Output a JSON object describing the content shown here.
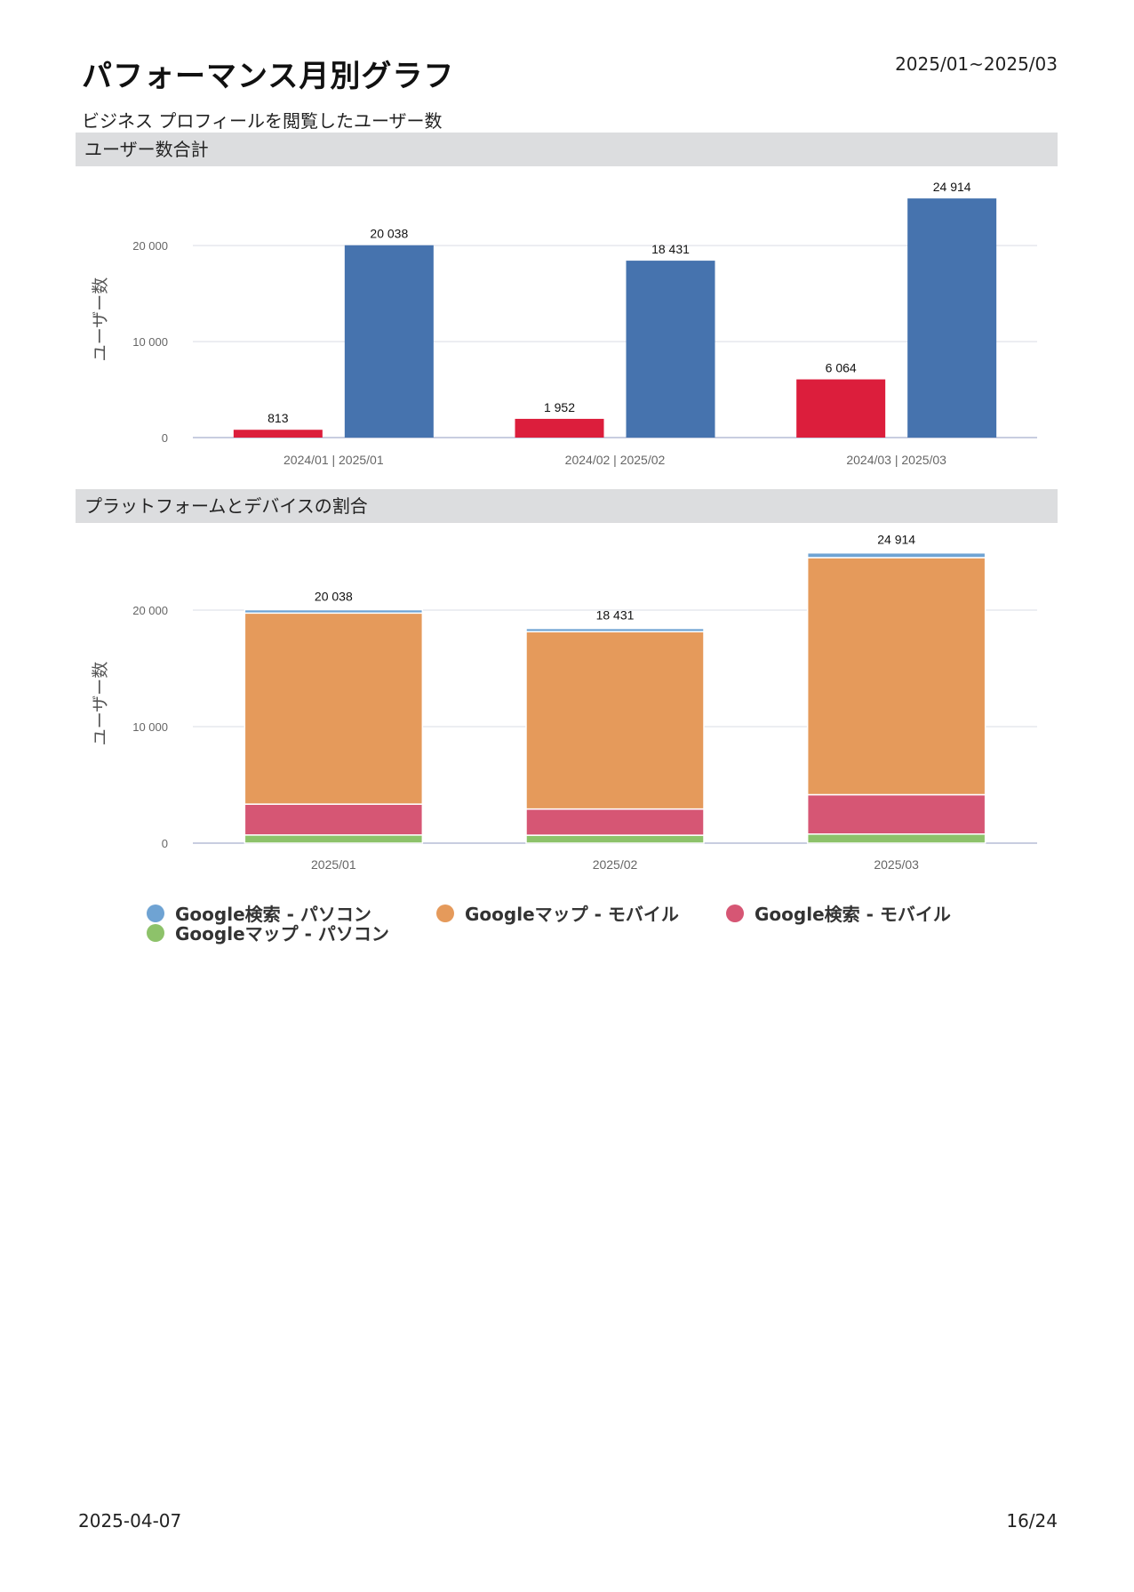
{
  "header": {
    "title": "パフォーマンス月別グラフ",
    "period": "2025/01~2025/03",
    "subtitle": "ビジネス プロフィールを閲覧したユーザー数"
  },
  "sections": {
    "total_title": "ユーザー数合計",
    "platform_title": "プラットフォームとデバイスの割合"
  },
  "chart_data": [
    {
      "type": "bar",
      "ylabel": "ユーザー数",
      "ylim": [
        0,
        26500
      ],
      "yticks": [
        0,
        10000,
        20000
      ],
      "ytick_labels": [
        "0",
        "10 000",
        "20 000"
      ],
      "categories": [
        "2024/01 | 2025/01",
        "2024/02 | 2025/02",
        "2024/03 | 2025/03"
      ],
      "series": [
        {
          "values": [
            813,
            1952,
            6064
          ],
          "value_labels": [
            "813",
            "1 952",
            "6 064"
          ],
          "color": "#dc1e3c"
        },
        {
          "values": [
            20038,
            18431,
            24914
          ],
          "value_labels": [
            "20 038",
            "18 431",
            "24 914"
          ],
          "color": "#4673ae"
        }
      ],
      "grid": true
    },
    {
      "type": "bar",
      "stacked": true,
      "ylabel": "ユーザー数",
      "ylim": [
        0,
        25500
      ],
      "yticks": [
        0,
        10000,
        20000
      ],
      "ytick_labels": [
        "0",
        "10 000",
        "20 000"
      ],
      "categories": [
        "2025/01",
        "2025/02",
        "2025/03"
      ],
      "totals": [
        20038,
        18431,
        24914
      ],
      "total_labels": [
        "20 038",
        "18 431",
        "24 914"
      ],
      "series": [
        {
          "name": "Googleマップ - パソコン",
          "values": [
            700,
            680,
            780
          ],
          "color": "#8dc26a"
        },
        {
          "name": "Google検索 - モバイル",
          "values": [
            2650,
            2250,
            3380
          ],
          "color": "#d65674"
        },
        {
          "name": "Googleマップ - モバイル",
          "values": [
            16400,
            15220,
            20350
          ],
          "color": "#e59a5b"
        },
        {
          "name": "Google検索 - パソコン",
          "values": [
            288,
            281,
            404
          ],
          "color": "#6fa3d3"
        }
      ],
      "legend_order": [
        3,
        2,
        1,
        0
      ],
      "grid": true
    }
  ],
  "footer": {
    "date": "2025-04-07",
    "page": "16/24"
  }
}
